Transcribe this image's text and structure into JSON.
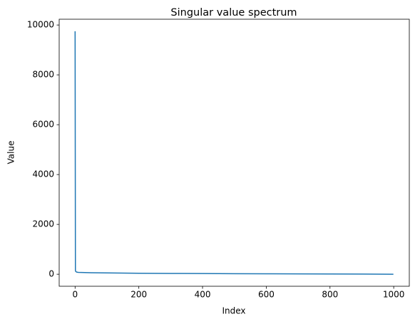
{
  "chart_data": {
    "type": "line",
    "title": "Singular value spectrum",
    "x_label": "Index",
    "y_label": "Value",
    "x": [
      0,
      1,
      2,
      5,
      10,
      20,
      50,
      100,
      200,
      300,
      400,
      500,
      600,
      700,
      800,
      900,
      999
    ],
    "series": [
      {
        "color": "#1f77b4",
        "values": [
          9750,
          150,
          110,
          85,
          75,
          70,
          62,
          52,
          40,
          34,
          28,
          23,
          18,
          14,
          10,
          6,
          1
        ]
      }
    ],
    "xlim": [
      -49.95,
      1048.95
    ],
    "xticks": [
      0,
      200,
      400,
      600,
      800,
      1000
    ],
    "ylim": [
      -482,
      10232
    ],
    "yticks": [
      0,
      2000,
      4000,
      6000,
      8000,
      10000
    ],
    "grid": false
  }
}
